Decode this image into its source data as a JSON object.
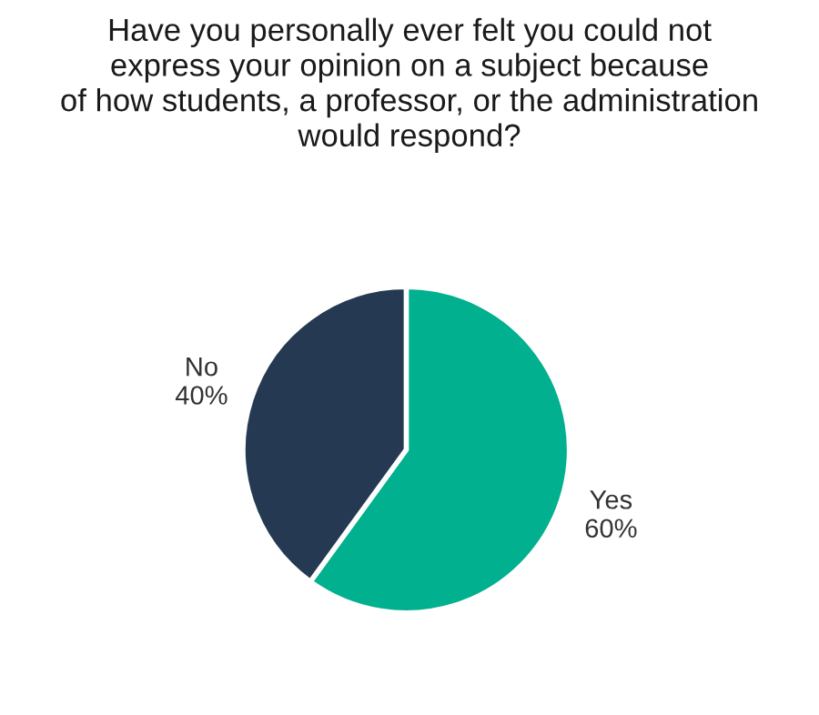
{
  "chart_data": {
    "type": "pie",
    "title": "Have you personally ever felt you could not\nexpress your opinion on a subject because\nof how students, a professor, or the administration\nwould respond?",
    "categories": [
      "Yes",
      "No"
    ],
    "values": [
      60,
      40
    ],
    "value_labels": [
      "60%",
      "40%"
    ],
    "colors": [
      "#00b08f",
      "#253a52"
    ],
    "legend": false
  }
}
